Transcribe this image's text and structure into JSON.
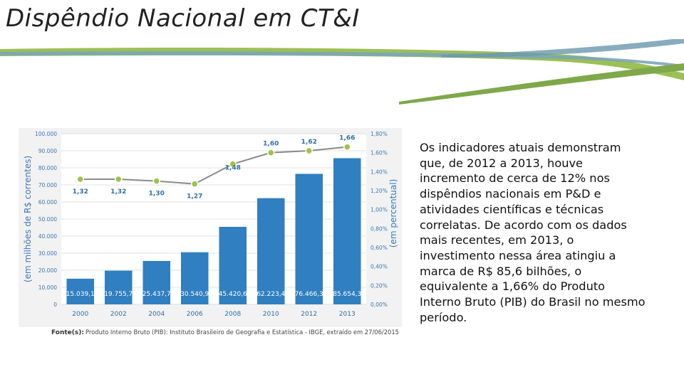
{
  "slide": {
    "title": "Dispêndio Nacional em CT&I",
    "body": "Os indicadores atuais demonstram que, de 2012 a 2013, houve incremento de cerca de 12% nos dispêndios nacionais em P&D e atividades científicas e técnicas correlatas. De acordo com os dados mais recentes, em 2013, o investimento nessa área atingiu a marca de R$ 85,6 bilhões, o equivalente a 1,66% do Produto Interno Bruto (PIB) do Brasil no mesmo período."
  },
  "colors": {
    "bar": "#2f7fc1",
    "line": "#8a8a8a",
    "marker": "#9dc34a",
    "axis_text": "#3a78b5",
    "banner_green": "#8ab04a",
    "banner_blue": "#6f9db3"
  },
  "chart_data": {
    "type": "bar",
    "categories": [
      "2000",
      "2002",
      "2004",
      "2006",
      "2008",
      "2010",
      "2012",
      "2013"
    ],
    "series": [
      {
        "type": "bar",
        "values": [
          15039.1,
          19755.7,
          25437.7,
          30540.9,
          45420.6,
          62223.4,
          76466.3,
          85654.3
        ],
        "labels": [
          "15.039,1",
          "19.755,7",
          "25.437,7",
          "30.540,9",
          "45.420,6",
          "62.223,4",
          "76.466,3",
          "85.654,3"
        ]
      },
      {
        "type": "line",
        "axis": "right",
        "values": [
          1.32,
          1.32,
          1.3,
          1.27,
          1.48,
          1.6,
          1.62,
          1.66
        ],
        "labels": [
          "1,32",
          "1,32",
          "1,30",
          "1,27",
          "1,48",
          "1,60",
          "1,62",
          "1,66"
        ]
      }
    ],
    "ylabel": "(em milhões de R$ correntes)",
    "y2label": "(em percentual)",
    "ylim": [
      0,
      100000
    ],
    "y2lim": [
      0,
      1.8
    ],
    "yticks": [
      "0",
      "10.000",
      "20.000",
      "30.000",
      "40.000",
      "50.000",
      "60.000",
      "70.000",
      "80.000",
      "90.000",
      "100.000"
    ],
    "y2ticks": [
      "0,00%",
      "0,20%",
      "0,40%",
      "0,60%",
      "0,80%",
      "1,00%",
      "1,20%",
      "1,40%",
      "1,60%",
      "1,80%"
    ],
    "grid": true,
    "source_label": "Fonte(s):",
    "source_text": "Produto Interno Bruto (PIB): Instituto Brasileiro de Geografia e Estatística - IBGE, extraído em 27/06/2015"
  }
}
